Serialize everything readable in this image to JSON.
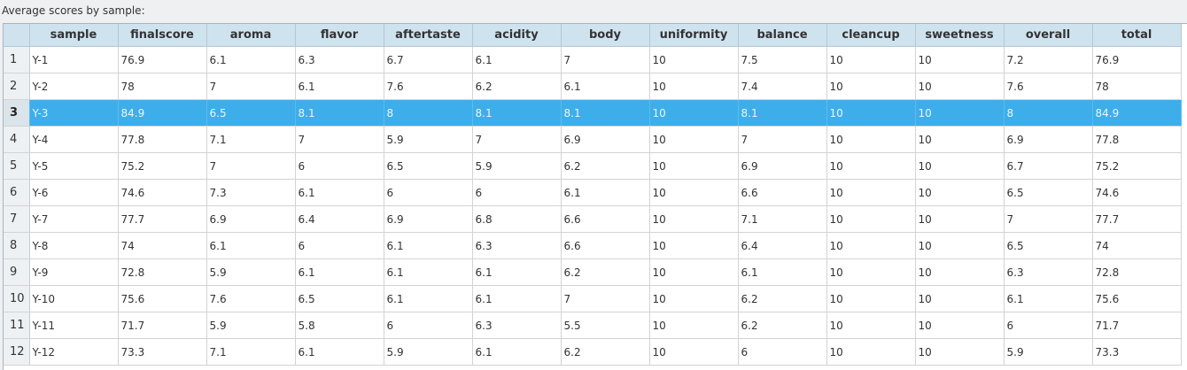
{
  "caption": "Average scores by sample:",
  "columns": [
    "sample",
    "finalscore",
    "aroma",
    "flavor",
    "aftertaste",
    "acidity",
    "body",
    "uniformity",
    "balance",
    "cleancup",
    "sweetness",
    "overall",
    "total"
  ],
  "selected_row": 3,
  "selection_color": "#3daee9",
  "header_color": "#cfe3ef",
  "rows": [
    {
      "num": "1",
      "cells": [
        "Y-1",
        "76.9",
        "6.1",
        "6.3",
        "6.7",
        "6.1",
        "7",
        "10",
        "7.5",
        "10",
        "10",
        "7.2",
        "76.9"
      ]
    },
    {
      "num": "2",
      "cells": [
        "Y-2",
        "78",
        "7",
        "6.1",
        "7.6",
        "6.2",
        "6.1",
        "10",
        "7.4",
        "10",
        "10",
        "7.6",
        "78"
      ]
    },
    {
      "num": "3",
      "cells": [
        "Y-3",
        "84.9",
        "6.5",
        "8.1",
        "8",
        "8.1",
        "8.1",
        "10",
        "8.1",
        "10",
        "10",
        "8",
        "84.9"
      ]
    },
    {
      "num": "4",
      "cells": [
        "Y-4",
        "77.8",
        "7.1",
        "7",
        "5.9",
        "7",
        "6.9",
        "10",
        "7",
        "10",
        "10",
        "6.9",
        "77.8"
      ]
    },
    {
      "num": "5",
      "cells": [
        "Y-5",
        "75.2",
        "7",
        "6",
        "6.5",
        "5.9",
        "6.2",
        "10",
        "6.9",
        "10",
        "10",
        "6.7",
        "75.2"
      ]
    },
    {
      "num": "6",
      "cells": [
        "Y-6",
        "74.6",
        "7.3",
        "6.1",
        "6",
        "6",
        "6.1",
        "10",
        "6.6",
        "10",
        "10",
        "6.5",
        "74.6"
      ]
    },
    {
      "num": "7",
      "cells": [
        "Y-7",
        "77.7",
        "6.9",
        "6.4",
        "6.9",
        "6.8",
        "6.6",
        "10",
        "7.1",
        "10",
        "10",
        "7",
        "77.7"
      ]
    },
    {
      "num": "8",
      "cells": [
        "Y-8",
        "74",
        "6.1",
        "6",
        "6.1",
        "6.3",
        "6.6",
        "10",
        "6.4",
        "10",
        "10",
        "6.5",
        "74"
      ]
    },
    {
      "num": "9",
      "cells": [
        "Y-9",
        "72.8",
        "5.9",
        "6.1",
        "6.1",
        "6.1",
        "6.2",
        "10",
        "6.1",
        "10",
        "10",
        "6.3",
        "72.8"
      ]
    },
    {
      "num": "10",
      "cells": [
        "Y-10",
        "75.6",
        "7.6",
        "6.5",
        "6.1",
        "6.1",
        "7",
        "10",
        "6.2",
        "10",
        "10",
        "6.1",
        "75.6"
      ]
    },
    {
      "num": "11",
      "cells": [
        "Y-11",
        "71.7",
        "5.9",
        "5.8",
        "6",
        "6.3",
        "5.5",
        "10",
        "6.2",
        "10",
        "10",
        "6",
        "71.7"
      ]
    },
    {
      "num": "12",
      "cells": [
        "Y-12",
        "73.3",
        "7.1",
        "6.1",
        "5.9",
        "6.1",
        "6.2",
        "10",
        "6",
        "10",
        "10",
        "5.9",
        "73.3"
      ]
    }
  ]
}
